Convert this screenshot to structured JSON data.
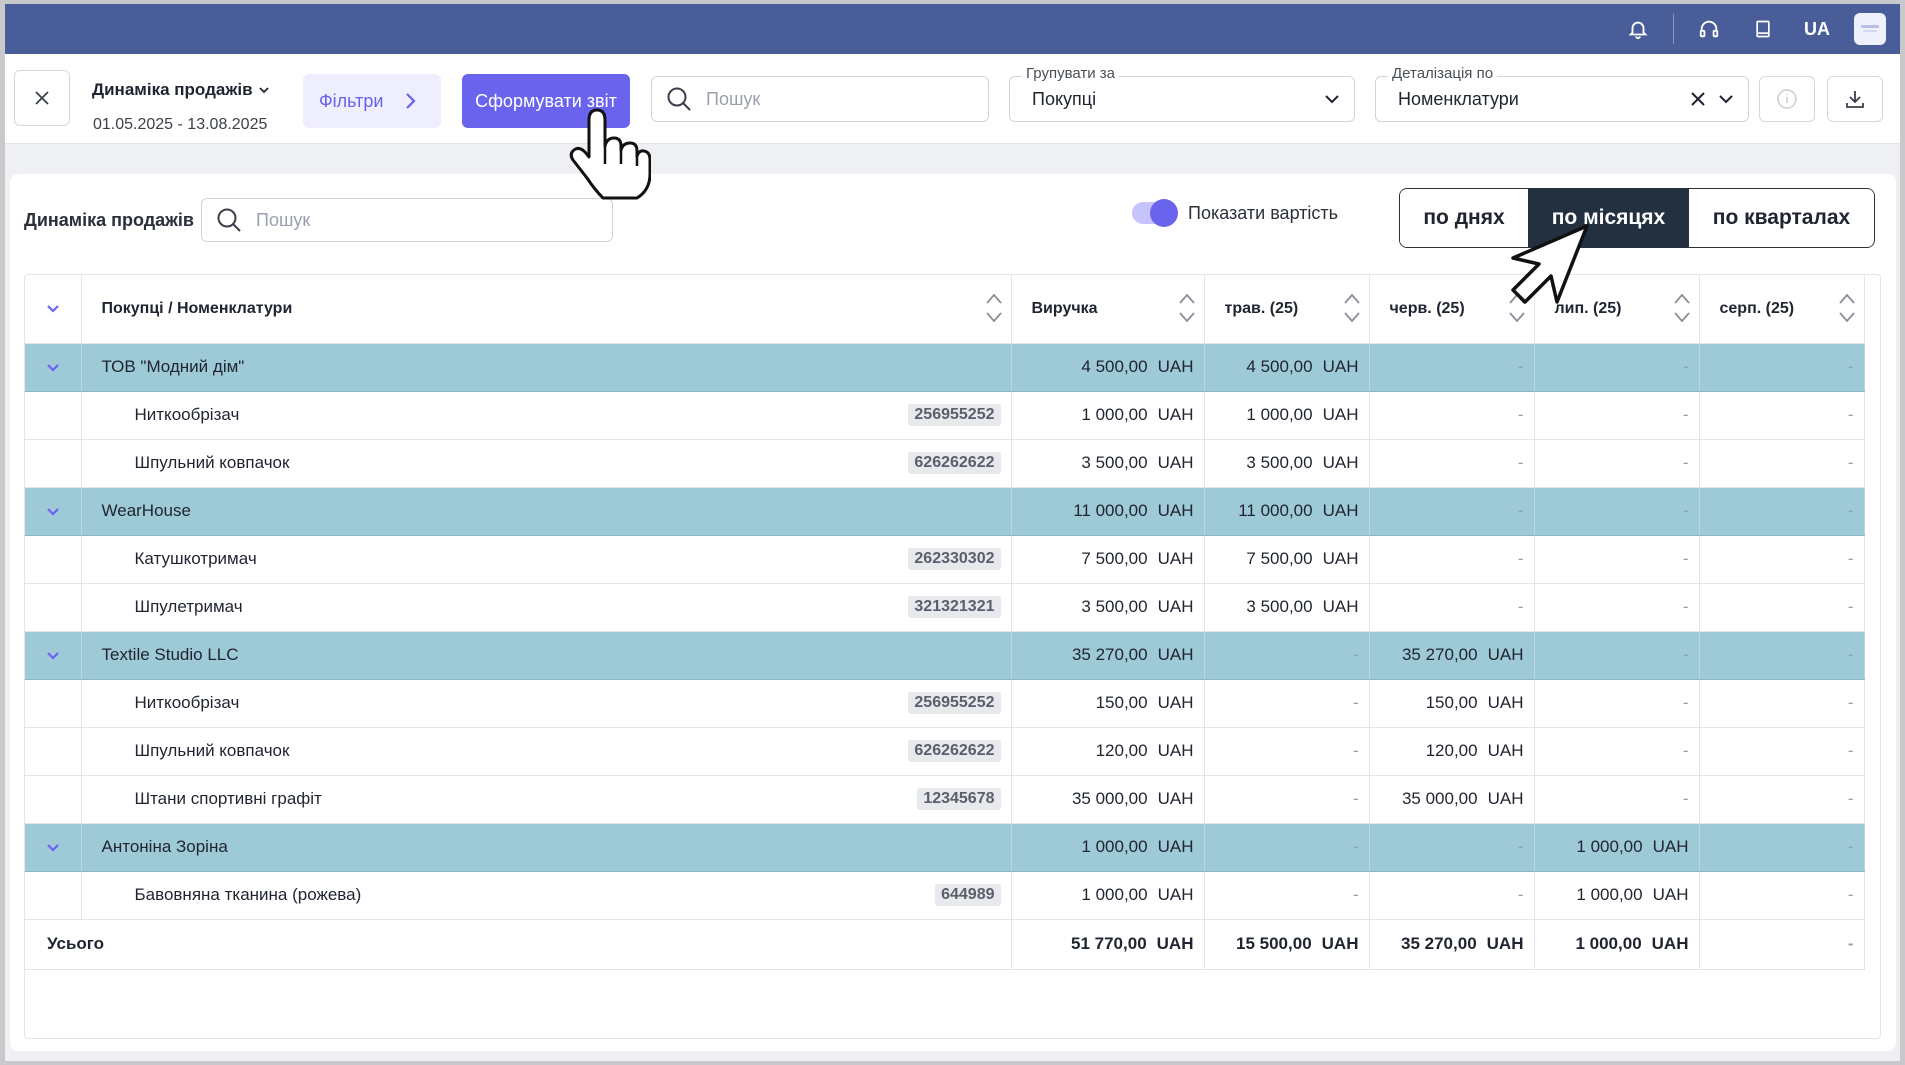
{
  "topbar": {
    "lang": "UA",
    "icons": [
      "bell-icon",
      "headset-icon",
      "book-icon"
    ]
  },
  "toolbar": {
    "report_title": "Динаміка продажів",
    "report_dates": "01.05.2025 - 13.08.2025",
    "filters_label": "Фільтри",
    "generate_label": "Сформувати звіт",
    "search_placeholder": "Пошук",
    "group_by": {
      "legend": "Групувати за",
      "value": "Покупці"
    },
    "detail_by": {
      "legend": "Деталізація по",
      "value": "Номенклатури"
    }
  },
  "card": {
    "title": "Динаміка продажів",
    "search_placeholder": "Пошук",
    "toggle_label": "Показати вартість",
    "segments": [
      "по днях",
      "по місяцях",
      "по кварталах"
    ],
    "active_segment": 1
  },
  "table": {
    "columns": [
      "Покупці / Номенклатури",
      "Виручка",
      "трав. (25)",
      "черв. (25)",
      "лип. (25)",
      "серп. (25)"
    ],
    "currency": "UAH",
    "dash": "-",
    "groups": [
      {
        "name": "ТОВ \"Модний дім\"",
        "values": [
          "4 500,00",
          "4 500,00",
          null,
          null,
          null
        ],
        "items": [
          {
            "name": "Ниткообрізач",
            "code": "256955252",
            "values": [
              "1 000,00",
              "1 000,00",
              null,
              null,
              null
            ]
          },
          {
            "name": "Шпульний ковпачок",
            "code": "626262622",
            "values": [
              "3 500,00",
              "3 500,00",
              null,
              null,
              null
            ]
          }
        ]
      },
      {
        "name": "WearHouse",
        "values": [
          "11 000,00",
          "11 000,00",
          null,
          null,
          null
        ],
        "items": [
          {
            "name": "Катушкотримач",
            "code": "262330302",
            "values": [
              "7 500,00",
              "7 500,00",
              null,
              null,
              null
            ]
          },
          {
            "name": "Шпулетримач",
            "code": "321321321",
            "values": [
              "3 500,00",
              "3 500,00",
              null,
              null,
              null
            ]
          }
        ]
      },
      {
        "name": "Textile Studio LLC",
        "values": [
          "35 270,00",
          null,
          "35 270,00",
          null,
          null
        ],
        "items": [
          {
            "name": "Ниткообрізач",
            "code": "256955252",
            "values": [
              "150,00",
              null,
              "150,00",
              null,
              null
            ]
          },
          {
            "name": "Шпульний ковпачок",
            "code": "626262622",
            "values": [
              "120,00",
              null,
              "120,00",
              null,
              null
            ]
          },
          {
            "name": "Штани спортивні графіт",
            "code": "12345678",
            "values": [
              "35 000,00",
              null,
              "35 000,00",
              null,
              null
            ]
          }
        ]
      },
      {
        "name": "Антоніна Зоріна",
        "values": [
          "1 000,00",
          null,
          null,
          "1 000,00",
          null
        ],
        "items": [
          {
            "name": "Бавовняна тканина (рожева)",
            "code": "644989",
            "values": [
              "1 000,00",
              null,
              null,
              "1 000,00",
              null
            ]
          }
        ]
      }
    ],
    "total": {
      "label": "Усього",
      "values": [
        "51 770,00",
        "15 500,00",
        "35 270,00",
        "1 000,00",
        null
      ]
    }
  },
  "colors": {
    "topbar": "#495e98",
    "accent": "#6a63ee",
    "group_row": "#9ec9d7",
    "active_segment": "#223040"
  }
}
